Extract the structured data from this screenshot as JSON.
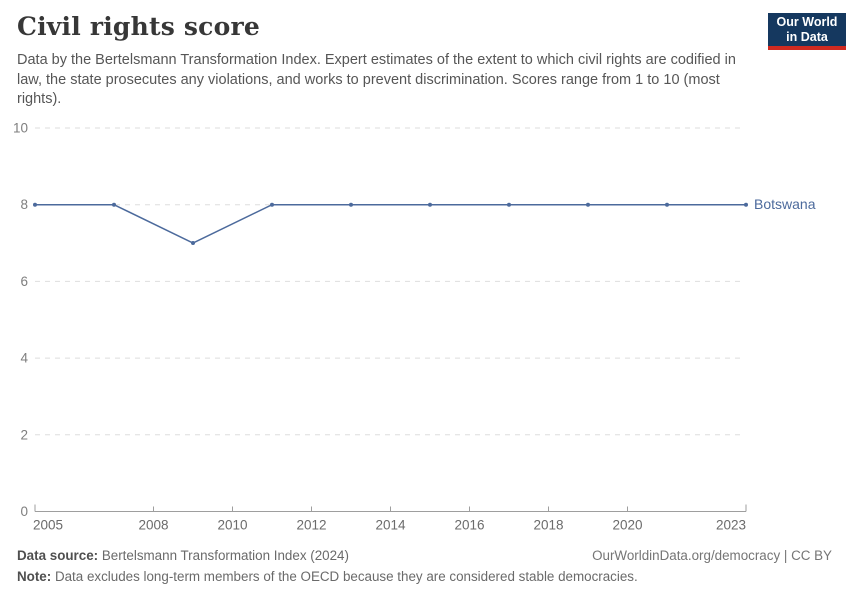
{
  "header": {
    "title": "Civil rights score",
    "subtitle": "Data by the Bertelsmann Transformation Index. Expert estimates of the extent to which civil rights are codified in law, the state prosecutes any violations, and works to prevent discrimination. Scores range from 1 to 10 (most rights)."
  },
  "logo": {
    "line1": "Our World",
    "line2": "in Data",
    "bg_color": "#15385f",
    "accent_color": "#d02a20"
  },
  "chart_data": {
    "type": "line",
    "title": "Civil rights score",
    "x": [
      2005,
      2007,
      2009,
      2011,
      2013,
      2015,
      2017,
      2019,
      2021,
      2023
    ],
    "series": [
      {
        "name": "Botswana",
        "values": [
          8,
          8,
          7,
          8,
          8,
          8,
          8,
          8,
          8,
          8
        ],
        "color": "#4C6A9C"
      }
    ],
    "xlabel": "",
    "ylabel": "",
    "xlim": [
      2005,
      2023
    ],
    "ylim": [
      0,
      10
    ],
    "yticks": [
      0,
      2,
      4,
      6,
      8,
      10
    ],
    "xticks": [
      2005,
      2008,
      2010,
      2012,
      2014,
      2016,
      2018,
      2020,
      2023
    ],
    "grid": true,
    "grid_style": "dashed",
    "legend_position": "end-of-line",
    "colors": {
      "gridline": "#dedede",
      "axis": "#9e9e9e",
      "ytick_label": "#7e7e7e",
      "xtick_label": "#6b6b6b"
    }
  },
  "footer": {
    "data_source_label": "Data source:",
    "data_source_value": " Bertelsmann Transformation Index (2024)",
    "note_label": "Note:",
    "note_value": " Data excludes long-term members of the OECD because they are considered stable democracies.",
    "link_text": "OurWorldinData.org/democracy | CC BY"
  }
}
